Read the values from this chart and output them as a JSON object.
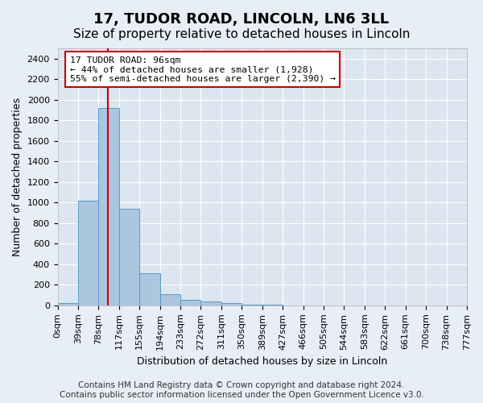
{
  "title": "17, TUDOR ROAD, LINCOLN, LN6 3LL",
  "subtitle": "Size of property relative to detached houses in Lincoln",
  "xlabel": "Distribution of detached houses by size in Lincoln",
  "ylabel": "Number of detached properties",
  "bin_labels": [
    "0sqm",
    "39sqm",
    "78sqm",
    "117sqm",
    "155sqm",
    "194sqm",
    "233sqm",
    "272sqm",
    "311sqm",
    "350sqm",
    "389sqm",
    "427sqm",
    "466sqm",
    "505sqm",
    "544sqm",
    "583sqm",
    "622sqm",
    "661sqm",
    "700sqm",
    "738sqm",
    "777sqm"
  ],
  "bar_values": [
    20,
    1020,
    1920,
    940,
    310,
    110,
    55,
    40,
    25,
    5,
    3,
    2,
    2,
    1,
    1,
    1,
    0,
    0,
    0,
    0
  ],
  "bar_color": "#adc6e0",
  "bar_edge_color": "#5a9bc9",
  "annotation_text": "17 TUDOR ROAD: 96sqm\n← 44% of detached houses are smaller (1,928)\n55% of semi-detached houses are larger (2,390) →",
  "annotation_box_color": "#ffffff",
  "annotation_box_edge": "#cc0000",
  "ylim": [
    0,
    2500
  ],
  "yticks": [
    0,
    200,
    400,
    600,
    800,
    1000,
    1200,
    1400,
    1600,
    1800,
    2000,
    2200,
    2400
  ],
  "footer": "Contains HM Land Registry data © Crown copyright and database right 2024.\nContains public sector information licensed under the Open Government Licence v3.0.",
  "bg_color": "#e8eef5",
  "plot_bg_color": "#dce6f0",
  "grid_color": "#ffffff",
  "title_fontsize": 13,
  "subtitle_fontsize": 11,
  "label_fontsize": 9,
  "tick_fontsize": 8,
  "footer_fontsize": 7.5
}
